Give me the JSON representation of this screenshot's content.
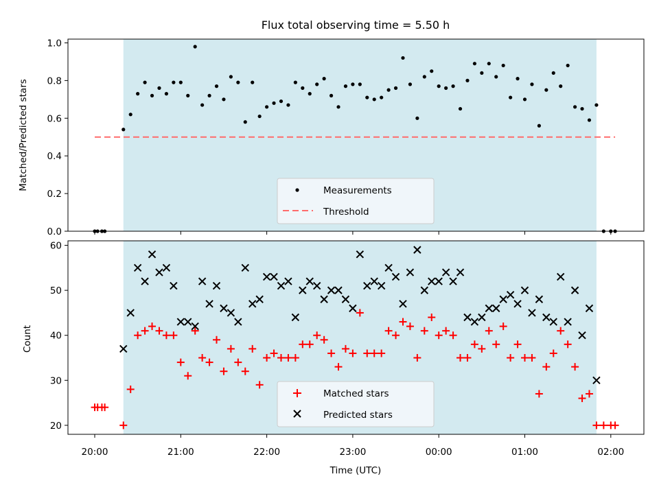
{
  "chart_data": {
    "type": "scatter",
    "title": "Flux total observing time = 5.50 h",
    "xlabel": "Time (UTC)",
    "x_ticks": [
      "20:00",
      "21:00",
      "22:00",
      "23:00",
      "00:00",
      "01:00",
      "02:00"
    ],
    "shaded_band": {
      "start": "20:20",
      "end": "01:50",
      "color": "#d3eaf0"
    },
    "top": {
      "ylabel": "Matched/Predicted stars",
      "ylim": [
        0,
        1.02
      ],
      "y_ticks": [
        "0.0",
        "0.2",
        "0.4",
        "0.6",
        "0.8",
        "1.0"
      ],
      "threshold": {
        "value": 0.5,
        "from": "20:00",
        "to": "02:03",
        "color": "#ff6b6b"
      },
      "legend": [
        "Measurements",
        "Threshold"
      ],
      "measurement_color": "#000000",
      "x": [
        "20:00",
        "20:02",
        "20:05",
        "20:07",
        "20:20",
        "20:25",
        "20:30",
        "20:35",
        "20:40",
        "20:45",
        "20:50",
        "20:55",
        "21:00",
        "21:05",
        "21:10",
        "21:15",
        "21:20",
        "21:25",
        "21:30",
        "21:35",
        "21:40",
        "21:45",
        "21:50",
        "21:55",
        "22:00",
        "22:05",
        "22:10",
        "22:15",
        "22:20",
        "22:25",
        "22:30",
        "22:35",
        "22:40",
        "22:45",
        "22:50",
        "22:55",
        "23:00",
        "23:05",
        "23:10",
        "23:15",
        "23:20",
        "23:25",
        "23:30",
        "23:35",
        "23:40",
        "23:45",
        "23:50",
        "23:55",
        "00:00",
        "00:05",
        "00:10",
        "00:15",
        "00:20",
        "00:25",
        "00:30",
        "00:35",
        "00:40",
        "00:45",
        "00:50",
        "00:55",
        "01:00",
        "01:05",
        "01:10",
        "01:15",
        "01:20",
        "01:25",
        "01:30",
        "01:35",
        "01:40",
        "01:45",
        "01:50",
        "01:55",
        "02:00",
        "02:03"
      ],
      "y": [
        0,
        0,
        0,
        0,
        0.54,
        0.62,
        0.73,
        0.79,
        0.72,
        0.76,
        0.73,
        0.79,
        0.79,
        0.72,
        0.98,
        0.67,
        0.72,
        0.77,
        0.7,
        0.82,
        0.79,
        0.58,
        0.79,
        0.61,
        0.66,
        0.68,
        0.69,
        0.67,
        0.79,
        0.76,
        0.73,
        0.78,
        0.81,
        0.72,
        0.66,
        0.77,
        0.78,
        0.78,
        0.71,
        0.7,
        0.71,
        0.75,
        0.76,
        0.92,
        0.78,
        0.6,
        0.82,
        0.85,
        0.77,
        0.76,
        0.77,
        0.65,
        0.8,
        0.89,
        0.84,
        0.89,
        0.82,
        0.88,
        0.71,
        0.81,
        0.7,
        0.78,
        0.56,
        0.75,
        0.84,
        0.77,
        0.88,
        0.66,
        0.65,
        0.59,
        0.67,
        0,
        0,
        0
      ]
    },
    "bottom": {
      "ylabel": "Count",
      "ylim": [
        18,
        61
      ],
      "y_ticks": [
        "20",
        "30",
        "40",
        "50",
        "60"
      ],
      "legend": [
        "Matched stars",
        "Predicted stars"
      ],
      "series": [
        {
          "name": "Matched stars",
          "color": "#ff0000",
          "marker": "+",
          "x": [
            "20:00",
            "20:02",
            "20:05",
            "20:07",
            "20:20",
            "20:25",
            "20:30",
            "20:35",
            "20:40",
            "20:45",
            "20:50",
            "20:55",
            "21:00",
            "21:05",
            "21:10",
            "21:15",
            "21:20",
            "21:25",
            "21:30",
            "21:35",
            "21:40",
            "21:45",
            "21:50",
            "21:55",
            "22:00",
            "22:05",
            "22:10",
            "22:15",
            "22:20",
            "22:25",
            "22:30",
            "22:35",
            "22:40",
            "22:45",
            "22:50",
            "22:55",
            "23:00",
            "23:05",
            "23:10",
            "23:15",
            "23:20",
            "23:25",
            "23:30",
            "23:35",
            "23:40",
            "23:45",
            "23:50",
            "23:55",
            "00:00",
            "00:05",
            "00:10",
            "00:15",
            "00:20",
            "00:25",
            "00:30",
            "00:35",
            "00:40",
            "00:45",
            "00:50",
            "00:55",
            "01:00",
            "01:05",
            "01:10",
            "01:15",
            "01:20",
            "01:25",
            "01:30",
            "01:35",
            "01:40",
            "01:45",
            "01:50",
            "01:55",
            "02:00",
            "02:03"
          ],
          "y": [
            24,
            24,
            24,
            24,
            20,
            28,
            40,
            41,
            42,
            41,
            40,
            40,
            34,
            31,
            41,
            35,
            34,
            39,
            32,
            37,
            34,
            32,
            37,
            29,
            35,
            36,
            35,
            35,
            35,
            38,
            38,
            40,
            39,
            36,
            33,
            37,
            36,
            45,
            36,
            36,
            36,
            41,
            40,
            43,
            42,
            35,
            41,
            44,
            40,
            41,
            40,
            35,
            35,
            38,
            37,
            41,
            38,
            42,
            35,
            38,
            35,
            35,
            27,
            33,
            36,
            41,
            38,
            33,
            26,
            27,
            20,
            20,
            20,
            20
          ]
        },
        {
          "name": "Predicted stars",
          "color": "#000000",
          "marker": "x",
          "x": [
            "20:20",
            "20:25",
            "20:30",
            "20:35",
            "20:40",
            "20:45",
            "20:50",
            "20:55",
            "21:00",
            "21:05",
            "21:10",
            "21:15",
            "21:20",
            "21:25",
            "21:30",
            "21:35",
            "21:40",
            "21:45",
            "21:50",
            "21:55",
            "22:00",
            "22:05",
            "22:10",
            "22:15",
            "22:20",
            "22:25",
            "22:30",
            "22:35",
            "22:40",
            "22:45",
            "22:50",
            "22:55",
            "23:00",
            "23:05",
            "23:10",
            "23:15",
            "23:20",
            "23:25",
            "23:30",
            "23:35",
            "23:40",
            "23:45",
            "23:50",
            "23:55",
            "00:00",
            "00:05",
            "00:10",
            "00:15",
            "00:20",
            "00:25",
            "00:30",
            "00:35",
            "00:40",
            "00:45",
            "00:50",
            "00:55",
            "01:00",
            "01:05",
            "01:10",
            "01:15",
            "01:20",
            "01:25",
            "01:30",
            "01:35",
            "01:40",
            "01:45",
            "01:50"
          ],
          "y": [
            37,
            45,
            55,
            52,
            58,
            54,
            55,
            51,
            43,
            43,
            42,
            52,
            47,
            51,
            46,
            45,
            43,
            55,
            47,
            48,
            53,
            53,
            51,
            52,
            44,
            50,
            52,
            51,
            48,
            50,
            50,
            48,
            46,
            58,
            51,
            52,
            51,
            55,
            53,
            47,
            54,
            59,
            50,
            52,
            52,
            54,
            52,
            54,
            44,
            43,
            44,
            46,
            46,
            48,
            49,
            47,
            50,
            45,
            48,
            44,
            43,
            53,
            43,
            50,
            40,
            46,
            30
          ]
        }
      ]
    }
  }
}
